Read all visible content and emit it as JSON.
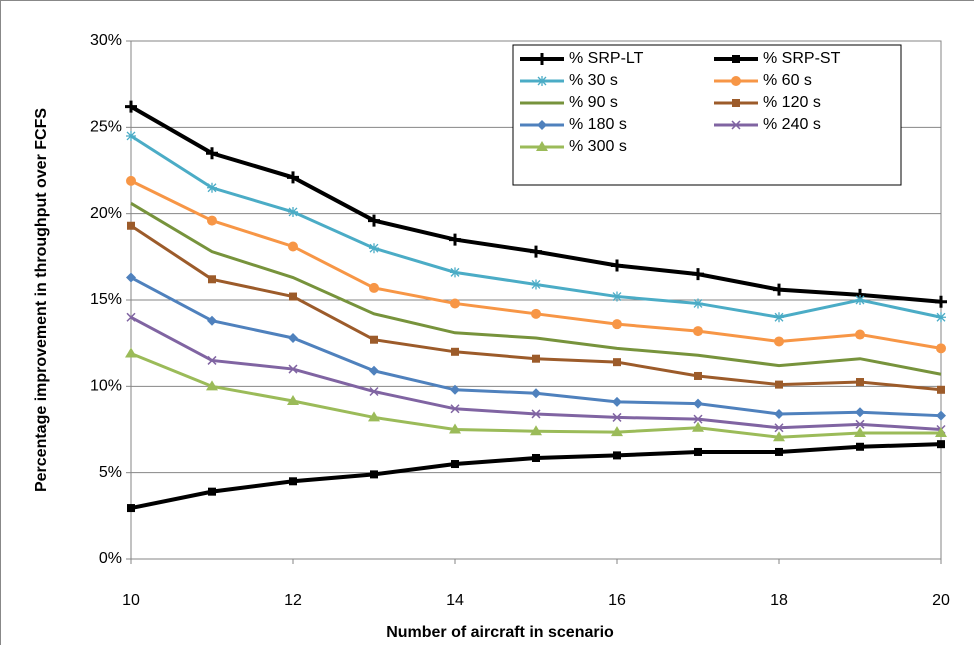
{
  "chart_data": {
    "type": "line",
    "x_label": "Number of aircraft in scenario",
    "y_label": "Percentage improvement in throughput over FCFS",
    "x": [
      10,
      11,
      12,
      13,
      14,
      15,
      16,
      17,
      18,
      19,
      20
    ],
    "xlim": [
      10,
      20
    ],
    "xticks": [
      10,
      12,
      14,
      16,
      18,
      20
    ],
    "ylim": [
      0,
      30
    ],
    "yticks": [
      {
        "value": 0,
        "label": "0%"
      },
      {
        "value": 5,
        "label": "5%"
      },
      {
        "value": 10,
        "label": "10%"
      },
      {
        "value": 15,
        "label": "15%"
      },
      {
        "value": 20,
        "label": "20%"
      },
      {
        "value": 25,
        "label": "25%"
      },
      {
        "value": 30,
        "label": "30%"
      }
    ],
    "grid": true,
    "legend": "top-right",
    "series": [
      {
        "name": "% SRP-LT",
        "color": "#000000",
        "marker": "plus",
        "values": [
          26.2,
          23.5,
          22.1,
          19.6,
          18.5,
          17.8,
          17.0,
          16.5,
          15.6,
          15.3,
          14.9
        ]
      },
      {
        "name": "% SRP-ST",
        "color": "#000000",
        "marker": "square",
        "values": [
          2.95,
          3.9,
          4.5,
          4.9,
          5.5,
          5.85,
          6.0,
          6.2,
          6.2,
          6.5,
          6.65
        ]
      },
      {
        "name": "% 30 s",
        "color": "#4bacc6",
        "marker": "star",
        "values": [
          24.5,
          21.5,
          20.1,
          18.0,
          16.6,
          15.9,
          15.2,
          14.8,
          14.0,
          15.0,
          14.0
        ]
      },
      {
        "name": "% 60 s",
        "color": "#f79646",
        "marker": "circle",
        "values": [
          21.9,
          19.6,
          18.1,
          15.7,
          14.8,
          14.2,
          13.6,
          13.2,
          12.6,
          13.0,
          12.2
        ]
      },
      {
        "name": "% 90 s",
        "color": "#77933c",
        "marker": "dash",
        "values": [
          20.6,
          17.8,
          16.3,
          14.2,
          13.1,
          12.8,
          12.2,
          11.8,
          11.2,
          11.6,
          10.7
        ]
      },
      {
        "name": "% 120 s",
        "color": "#9c5b2a",
        "marker": "square",
        "values": [
          19.3,
          16.2,
          15.2,
          12.7,
          12.0,
          11.6,
          11.4,
          10.6,
          10.1,
          10.25,
          9.8
        ]
      },
      {
        "name": "% 180 s",
        "color": "#4f81bd",
        "marker": "diamond",
        "values": [
          16.3,
          13.8,
          12.8,
          10.9,
          9.8,
          9.6,
          9.1,
          9.0,
          8.4,
          8.5,
          8.3
        ]
      },
      {
        "name": "% 240 s",
        "color": "#8064a2",
        "marker": "x",
        "values": [
          14.0,
          11.5,
          11.0,
          9.7,
          8.7,
          8.4,
          8.2,
          8.1,
          7.6,
          7.8,
          7.5
        ]
      },
      {
        "name": "% 300 s",
        "color": "#9bbb59",
        "marker": "triangle",
        "values": [
          11.9,
          10.0,
          9.15,
          8.2,
          7.5,
          7.4,
          7.35,
          7.6,
          7.05,
          7.3,
          7.3
        ]
      }
    ]
  }
}
